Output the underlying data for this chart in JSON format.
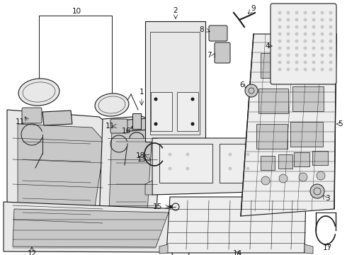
{
  "bg_color": "#ffffff",
  "line_color": "#1a1a1a",
  "label_color": "#111111",
  "figsize": [
    4.9,
    3.6
  ],
  "dpi": 100,
  "seat_fill": "#e8e8e8",
  "dark_fill": "#c8c8c8",
  "frame_fill": "#eeeeee"
}
